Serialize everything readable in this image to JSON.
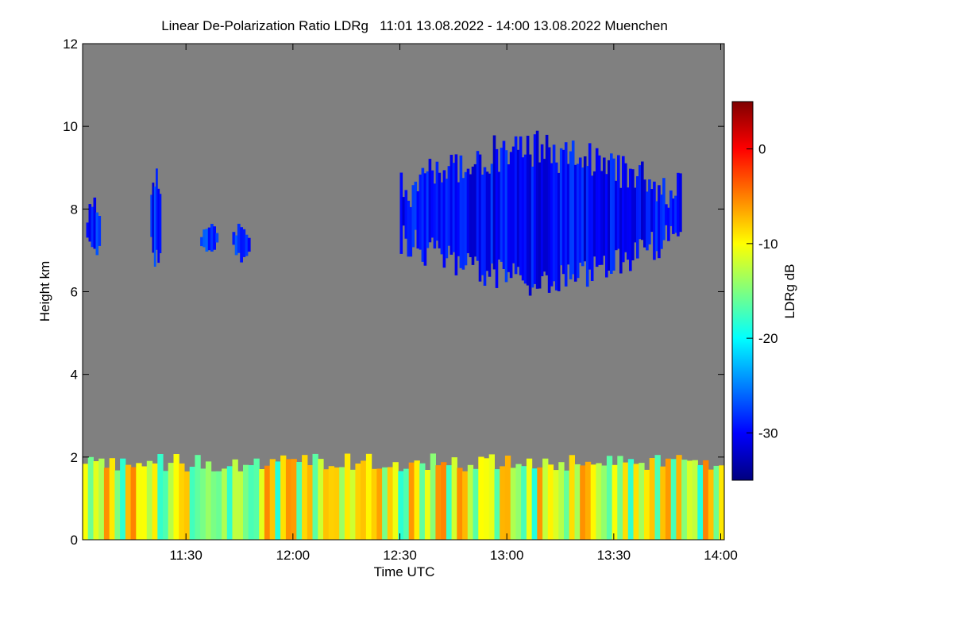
{
  "chart_data": {
    "type": "heatmap",
    "title": "Linear De-Polarization Ratio LDRg   11:01 13.08.2022 - 14:00 13.08.2022 Muenchen",
    "xlabel": "Time UTC",
    "ylabel": "Height km",
    "colorbar_label": "LDRg dB",
    "background_color": "#808080",
    "x_range_minutes_utc": [
      661,
      841
    ],
    "y_range_km": [
      0,
      12
    ],
    "x_ticks": [
      {
        "minute": 690,
        "label": "11:30"
      },
      {
        "minute": 720,
        "label": "12:00"
      },
      {
        "minute": 750,
        "label": "12:30"
      },
      {
        "minute": 780,
        "label": "13:00"
      },
      {
        "minute": 810,
        "label": "13:30"
      },
      {
        "minute": 840,
        "label": "14:00"
      }
    ],
    "y_ticks": [
      {
        "value": 0,
        "label": "0"
      },
      {
        "value": 2,
        "label": "2"
      },
      {
        "value": 4,
        "label": "4"
      },
      {
        "value": 6,
        "label": "6"
      },
      {
        "value": 8,
        "label": "8"
      },
      {
        "value": 10,
        "label": "10"
      },
      {
        "value": 12,
        "label": "12"
      }
    ],
    "colorbar_range_db": [
      -35,
      5
    ],
    "colorbar_ticks": [
      {
        "value": 0,
        "label": "0"
      },
      {
        "value": -10,
        "label": "-10"
      },
      {
        "value": -20,
        "label": "-20"
      },
      {
        "value": -30,
        "label": "-30"
      }
    ],
    "features": [
      {
        "name": "cirrus cloud",
        "t_start": 750,
        "t_end": 829,
        "base_km": 5.9,
        "top_km": 9.9,
        "ldr_db": -30
      },
      {
        "name": "small cloud 1",
        "t_start": 662,
        "t_end": 666,
        "base_km": 6.8,
        "top_km": 8.3,
        "ldr_db": -29
      },
      {
        "name": "small cloud 2",
        "t_start": 680,
        "t_end": 683,
        "base_km": 6.5,
        "top_km": 9.3,
        "ldr_db": -29
      },
      {
        "name": "small cloud 3",
        "t_start": 694,
        "t_end": 699,
        "base_km": 6.9,
        "top_km": 7.7,
        "ldr_db": -28
      },
      {
        "name": "small cloud 4",
        "t_start": 703,
        "t_end": 708,
        "base_km": 6.7,
        "top_km": 7.7,
        "ldr_db": -28
      },
      {
        "name": "boundary layer",
        "t_start": 661,
        "t_end": 841,
        "base_km": 0,
        "top_km": 2.2,
        "ldr_db": -12
      }
    ]
  }
}
